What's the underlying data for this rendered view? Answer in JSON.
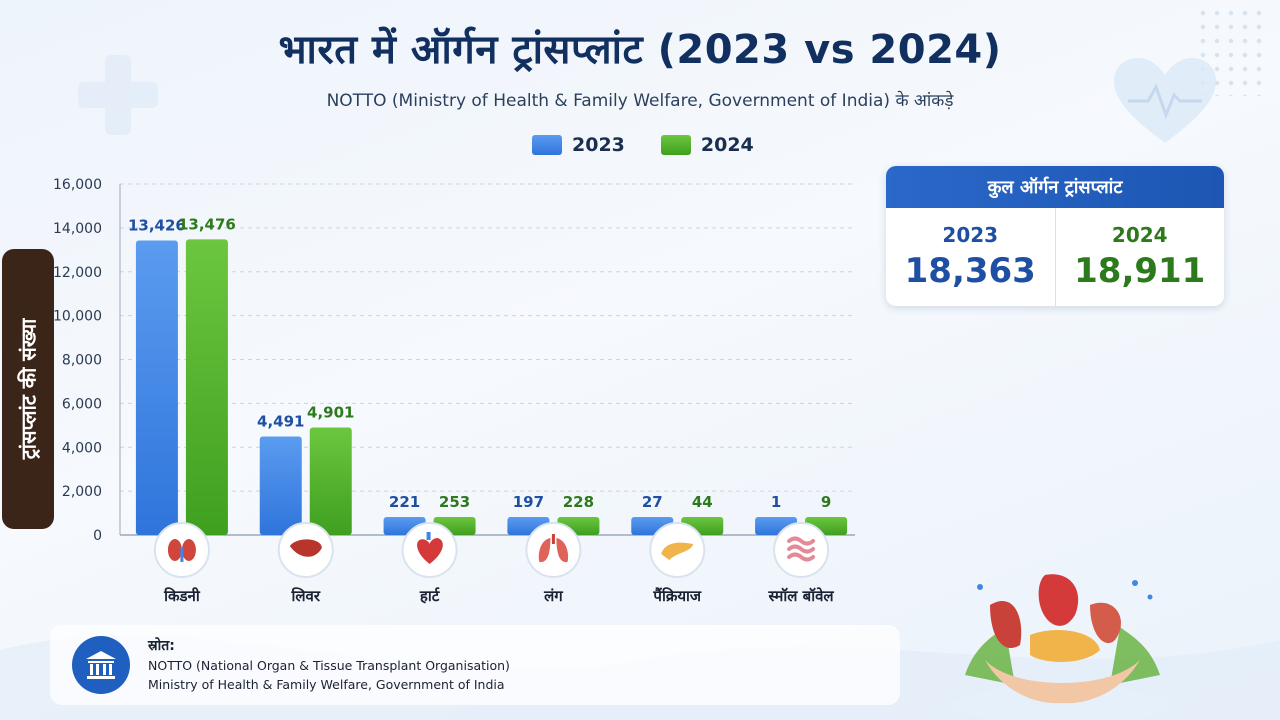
{
  "header": {
    "title": "भारत में ऑर्गन ट्रांसप्लांट (2023 vs 2024)",
    "subtitle": "NOTTO (Ministry of Health & Family Welfare, Government of India) के आंकड़े"
  },
  "colors": {
    "series_2023": "#3f86e6",
    "series_2024": "#4caf2a",
    "label_2023": "#1f4fa3",
    "label_2024": "#2d7a1d",
    "header_blue": "#1d56b3"
  },
  "chart_data": {
    "type": "bar",
    "title": "भारत में ऑर्गन ट्रांसप्लांट (2023 vs 2024)",
    "ylabel": "ट्रांसप्लांट की संख्या",
    "ylim": [
      0,
      16000
    ],
    "yticks": [
      "0",
      "2,000",
      "4,000",
      "6,000",
      "8,000",
      "10,000",
      "12,000",
      "14,000",
      "16,000"
    ],
    "grid": true,
    "legend_position": "top-center",
    "categories": [
      "किडनी",
      "लिवर",
      "हार्ट",
      "लंग",
      "पैंक्रियाज",
      "स्मॉल बॉवेल"
    ],
    "category_icons": [
      "kidney-icon",
      "liver-icon",
      "heart-icon",
      "lung-icon",
      "pancreas-icon",
      "small-bowel-icon"
    ],
    "series": [
      {
        "name": "2023",
        "values": [
          13426,
          4491,
          221,
          197,
          27,
          1
        ],
        "labels": [
          "13,426",
          "4,491",
          "221",
          "197",
          "27",
          "1"
        ]
      },
      {
        "name": "2024",
        "values": [
          13476,
          4901,
          253,
          228,
          44,
          9
        ],
        "labels": [
          "13,476",
          "4,901",
          "253",
          "228",
          "44",
          "9"
        ]
      }
    ]
  },
  "totals": {
    "title": "कुल ऑर्गन ट्रांसप्लांट",
    "y2023": {
      "year": "2023",
      "value": "18,363"
    },
    "y2024": {
      "year": "2024",
      "value": "18,911"
    }
  },
  "source": {
    "title": "स्रोत:",
    "line1": "NOTTO (National Organ & Tissue Transplant Organisation)",
    "line2": "Ministry of Health & Family Welfare, Government of India",
    "icon": "government-building-icon"
  }
}
